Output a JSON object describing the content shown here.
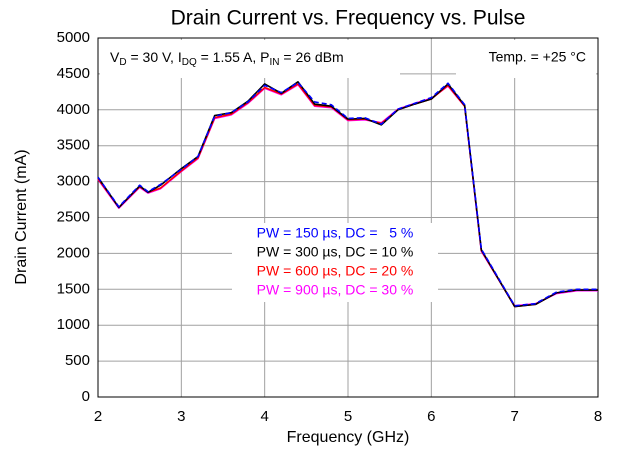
{
  "chart_data": {
    "type": "line",
    "title": "Drain Current vs. Frequency vs. Pulse",
    "xlabel": "Frequency (GHz)",
    "ylabel": "Drain Current (mA)",
    "annotation": [
      "V",
      "D",
      " = 30 V, I",
      "DQ",
      " = 1.55 A, P",
      "IN",
      " = 26 dBm"
    ],
    "temperature": "Temp. = +25 °C",
    "x": [
      2,
      2.25,
      2.5,
      2.6,
      2.75,
      3,
      3.2,
      3.4,
      3.6,
      3.8,
      4,
      4.2,
      4.4,
      4.6,
      4.8,
      5,
      5.2,
      5.4,
      5.6,
      5.8,
      6,
      6.2,
      6.4,
      6.6,
      7,
      7.25,
      7.5,
      7.75,
      8
    ],
    "series": [
      {
        "name": "PW = 150 µs, DC =   5 %",
        "color": "#0000ff",
        "dashed": true,
        "values": [
          3060,
          2650,
          2950,
          2860,
          2960,
          3170,
          3350,
          3910,
          3960,
          4110,
          4340,
          4240,
          4380,
          4110,
          4070,
          3880,
          3890,
          3800,
          4010,
          4090,
          4170,
          4370,
          4070,
          2060,
          1270,
          1300,
          1460,
          1500,
          1500
        ]
      },
      {
        "name": "PW = 300 µs, DC = 10 %",
        "color": "#000000",
        "values": [
          3060,
          2640,
          2940,
          2850,
          2950,
          3180,
          3350,
          3920,
          3960,
          4120,
          4360,
          4230,
          4390,
          4080,
          4050,
          3870,
          3880,
          3790,
          4000,
          4080,
          4150,
          4360,
          4060,
          2050,
          1260,
          1290,
          1450,
          1490,
          1490
        ]
      },
      {
        "name": "PW = 600 µs, DC = 20 %",
        "color": "#ff0000",
        "values": [
          3040,
          2640,
          2930,
          2850,
          2910,
          3150,
          3330,
          3890,
          3940,
          4100,
          4310,
          4220,
          4360,
          4060,
          4040,
          3860,
          3870,
          3810,
          4000,
          4080,
          4150,
          4340,
          4050,
          2040,
          1260,
          1290,
          1450,
          1490,
          1490
        ]
      },
      {
        "name": "PW = 900 µs, DC = 30 %",
        "color": "#ff00ff",
        "values": [
          3030,
          2630,
          2920,
          2840,
          2900,
          3140,
          3320,
          3880,
          3930,
          4090,
          4300,
          4210,
          4350,
          4050,
          4030,
          3850,
          3860,
          3820,
          4010,
          4090,
          4160,
          4330,
          4050,
          2030,
          1270,
          1300,
          1440,
          1480,
          1480
        ]
      }
    ],
    "xlim": [
      2,
      8
    ],
    "xticks": [
      2,
      3,
      4,
      5,
      6,
      7,
      8
    ],
    "ylim": [
      0,
      5000
    ],
    "yticks": [
      0,
      500,
      1000,
      1500,
      2000,
      2500,
      3000,
      3500,
      4000,
      4500,
      5000
    ],
    "grid": true
  }
}
